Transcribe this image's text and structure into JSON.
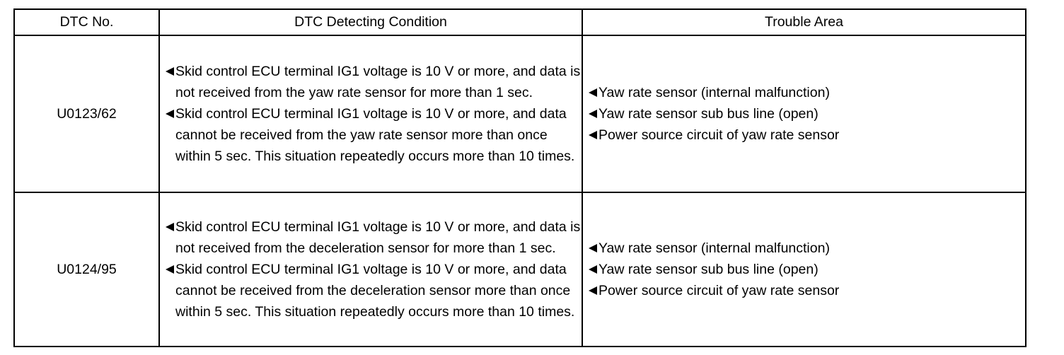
{
  "table": {
    "headers": {
      "code": "DTC No.",
      "condition": "DTC Detecting Condition",
      "area": "Trouble Area"
    },
    "rows": [
      {
        "code": "U0123/62",
        "conditions": [
          "Skid control ECU terminal IG1 voltage is 10 V or more, and data is not received from the yaw rate sensor for more than 1 sec.",
          "Skid control ECU terminal IG1 voltage is 10 V or more, and data cannot be received from the yaw rate sensor more than once within 5 sec. This situation repeatedly occurs more than 10 times."
        ],
        "areas": [
          "Yaw rate sensor (internal malfunction)",
          "Yaw rate sensor sub bus line (open)",
          "Power source circuit of yaw rate sensor"
        ]
      },
      {
        "code": "U0124/95",
        "conditions": [
          "Skid control ECU terminal IG1 voltage is 10 V or more, and data is not received from the deceleration sensor for more than 1 sec.",
          "Skid control ECU terminal IG1 voltage is 10 V or more, and data cannot be received from the deceleration sensor more than once within 5 sec. This situation repeatedly occurs more than 10 times."
        ],
        "areas": [
          "Yaw rate sensor (internal malfunction)",
          "Yaw rate sensor sub bus line (open)",
          "Power source circuit of yaw rate sensor"
        ]
      }
    ]
  },
  "icons": {
    "bullet": "left-pointing-triangle-icon"
  }
}
